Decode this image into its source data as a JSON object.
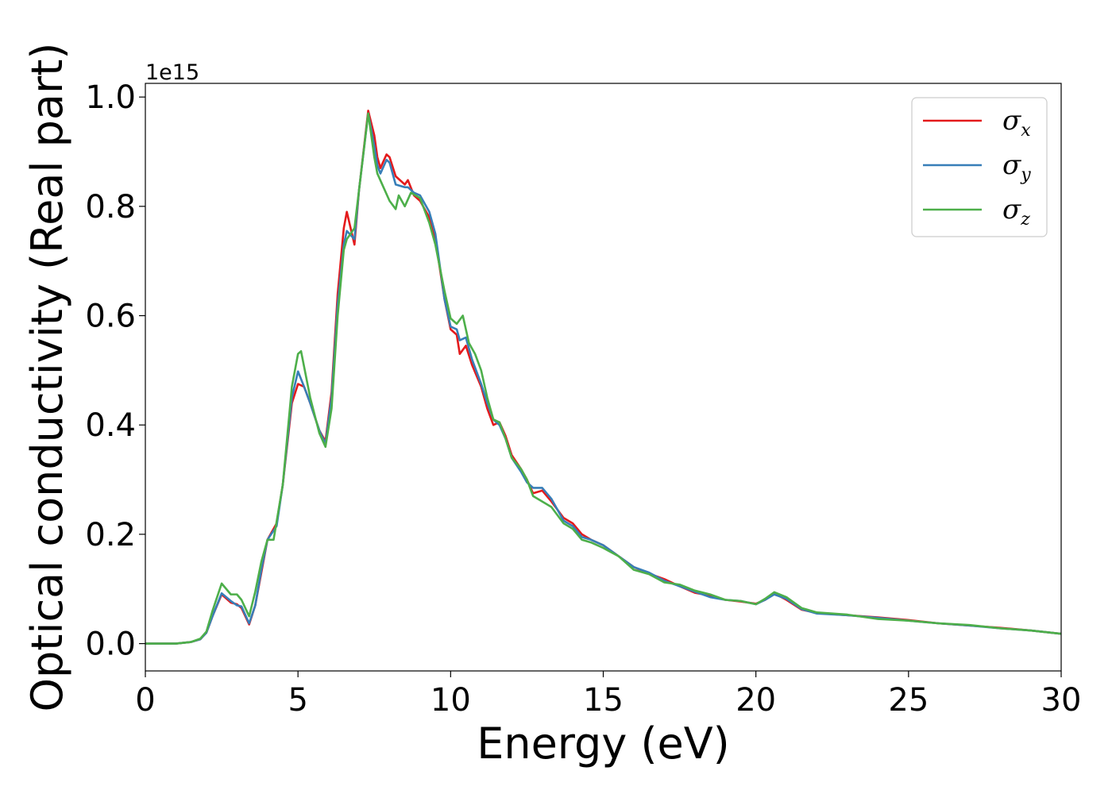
{
  "chart_data": {
    "type": "line",
    "title": "",
    "xlabel": "Energy (eV)",
    "ylabel": "Optical conductivity (Real part)",
    "y_offset_label": "1e15",
    "y_scale": 1000000000000000.0,
    "xlim": [
      0,
      30
    ],
    "ylim": [
      -0.05,
      1.025
    ],
    "grid": false,
    "legend_position": "top-right",
    "x_ticks": [
      0,
      5,
      10,
      15,
      20,
      25,
      30
    ],
    "x_tick_labels": [
      "0",
      "5",
      "10",
      "15",
      "20",
      "25",
      "30"
    ],
    "y_ticks": [
      0.0,
      0.2,
      0.4,
      0.6,
      0.8,
      1.0
    ],
    "y_tick_labels": [
      "0.0",
      "0.2",
      "0.4",
      "0.6",
      "0.8",
      "1.0"
    ],
    "series": [
      {
        "name": "σx",
        "symbol": "σ",
        "subscript": "x",
        "color": "#e41a1c",
        "points": [
          [
            0,
            0.0
          ],
          [
            1.0,
            0.0
          ],
          [
            1.5,
            0.003
          ],
          [
            1.8,
            0.008
          ],
          [
            2.0,
            0.02
          ],
          [
            2.2,
            0.05
          ],
          [
            2.5,
            0.09
          ],
          [
            2.8,
            0.075
          ],
          [
            3.0,
            0.072
          ],
          [
            3.15,
            0.065
          ],
          [
            3.4,
            0.035
          ],
          [
            3.6,
            0.07
          ],
          [
            3.8,
            0.13
          ],
          [
            4.0,
            0.19
          ],
          [
            4.3,
            0.22
          ],
          [
            4.5,
            0.29
          ],
          [
            4.8,
            0.44
          ],
          [
            5.0,
            0.475
          ],
          [
            5.2,
            0.47
          ],
          [
            5.4,
            0.44
          ],
          [
            5.7,
            0.39
          ],
          [
            5.9,
            0.37
          ],
          [
            6.1,
            0.46
          ],
          [
            6.3,
            0.64
          ],
          [
            6.5,
            0.76
          ],
          [
            6.6,
            0.79
          ],
          [
            6.85,
            0.73
          ],
          [
            7.0,
            0.83
          ],
          [
            7.3,
            0.975
          ],
          [
            7.5,
            0.93
          ],
          [
            7.6,
            0.89
          ],
          [
            7.7,
            0.87
          ],
          [
            7.9,
            0.895
          ],
          [
            8.0,
            0.89
          ],
          [
            8.2,
            0.855
          ],
          [
            8.5,
            0.84
          ],
          [
            8.6,
            0.848
          ],
          [
            8.8,
            0.82
          ],
          [
            9.0,
            0.81
          ],
          [
            9.3,
            0.78
          ],
          [
            9.5,
            0.74
          ],
          [
            9.8,
            0.63
          ],
          [
            10.0,
            0.575
          ],
          [
            10.2,
            0.565
          ],
          [
            10.3,
            0.53
          ],
          [
            10.5,
            0.545
          ],
          [
            10.7,
            0.51
          ],
          [
            11.0,
            0.47
          ],
          [
            11.2,
            0.43
          ],
          [
            11.4,
            0.4
          ],
          [
            11.6,
            0.405
          ],
          [
            11.8,
            0.38
          ],
          [
            12.0,
            0.345
          ],
          [
            12.3,
            0.32
          ],
          [
            12.5,
            0.3
          ],
          [
            12.7,
            0.275
          ],
          [
            13.0,
            0.28
          ],
          [
            13.3,
            0.26
          ],
          [
            13.7,
            0.23
          ],
          [
            14.0,
            0.22
          ],
          [
            14.3,
            0.2
          ],
          [
            14.6,
            0.19
          ],
          [
            15.0,
            0.18
          ],
          [
            15.5,
            0.16
          ],
          [
            16.0,
            0.14
          ],
          [
            16.5,
            0.128
          ],
          [
            17.0,
            0.118
          ],
          [
            17.5,
            0.105
          ],
          [
            18.0,
            0.093
          ],
          [
            18.5,
            0.088
          ],
          [
            19.0,
            0.08
          ],
          [
            19.5,
            0.077
          ],
          [
            20.0,
            0.073
          ],
          [
            20.3,
            0.08
          ],
          [
            20.6,
            0.092
          ],
          [
            21.0,
            0.08
          ],
          [
            21.5,
            0.062
          ],
          [
            22.0,
            0.056
          ],
          [
            23.0,
            0.052
          ],
          [
            24.0,
            0.048
          ],
          [
            25.0,
            0.043
          ],
          [
            26.0,
            0.037
          ],
          [
            27.0,
            0.033
          ],
          [
            28.0,
            0.029
          ],
          [
            29.0,
            0.024
          ],
          [
            30.0,
            0.018
          ]
        ]
      },
      {
        "name": "σy",
        "symbol": "σ",
        "subscript": "y",
        "color": "#377eb8",
        "points": [
          [
            0,
            0.0
          ],
          [
            1.0,
            0.0
          ],
          [
            1.5,
            0.003
          ],
          [
            1.8,
            0.008
          ],
          [
            2.0,
            0.02
          ],
          [
            2.2,
            0.05
          ],
          [
            2.5,
            0.092
          ],
          [
            2.8,
            0.078
          ],
          [
            3.0,
            0.07
          ],
          [
            3.15,
            0.068
          ],
          [
            3.4,
            0.037
          ],
          [
            3.6,
            0.07
          ],
          [
            3.8,
            0.135
          ],
          [
            4.0,
            0.19
          ],
          [
            4.3,
            0.215
          ],
          [
            4.5,
            0.29
          ],
          [
            4.8,
            0.45
          ],
          [
            5.0,
            0.498
          ],
          [
            5.2,
            0.47
          ],
          [
            5.4,
            0.44
          ],
          [
            5.7,
            0.39
          ],
          [
            5.9,
            0.365
          ],
          [
            6.1,
            0.45
          ],
          [
            6.3,
            0.62
          ],
          [
            6.5,
            0.73
          ],
          [
            6.6,
            0.755
          ],
          [
            6.85,
            0.74
          ],
          [
            7.0,
            0.83
          ],
          [
            7.3,
            0.97
          ],
          [
            7.5,
            0.91
          ],
          [
            7.6,
            0.875
          ],
          [
            7.7,
            0.86
          ],
          [
            7.9,
            0.885
          ],
          [
            8.0,
            0.88
          ],
          [
            8.2,
            0.84
          ],
          [
            8.5,
            0.835
          ],
          [
            8.6,
            0.835
          ],
          [
            8.8,
            0.825
          ],
          [
            9.0,
            0.82
          ],
          [
            9.3,
            0.79
          ],
          [
            9.5,
            0.75
          ],
          [
            9.8,
            0.63
          ],
          [
            10.0,
            0.58
          ],
          [
            10.2,
            0.575
          ],
          [
            10.3,
            0.555
          ],
          [
            10.5,
            0.56
          ],
          [
            10.7,
            0.52
          ],
          [
            11.0,
            0.475
          ],
          [
            11.2,
            0.44
          ],
          [
            11.4,
            0.41
          ],
          [
            11.6,
            0.4
          ],
          [
            11.8,
            0.375
          ],
          [
            12.0,
            0.34
          ],
          [
            12.3,
            0.315
          ],
          [
            12.5,
            0.295
          ],
          [
            12.7,
            0.285
          ],
          [
            13.0,
            0.285
          ],
          [
            13.3,
            0.265
          ],
          [
            13.7,
            0.225
          ],
          [
            14.0,
            0.215
          ],
          [
            14.3,
            0.195
          ],
          [
            14.6,
            0.19
          ],
          [
            15.0,
            0.18
          ],
          [
            15.5,
            0.16
          ],
          [
            16.0,
            0.14
          ],
          [
            16.5,
            0.13
          ],
          [
            17.0,
            0.115
          ],
          [
            17.5,
            0.105
          ],
          [
            18.0,
            0.095
          ],
          [
            18.5,
            0.085
          ],
          [
            19.0,
            0.08
          ],
          [
            19.5,
            0.078
          ],
          [
            20.0,
            0.072
          ],
          [
            20.3,
            0.08
          ],
          [
            20.6,
            0.09
          ],
          [
            21.0,
            0.082
          ],
          [
            21.5,
            0.063
          ],
          [
            22.0,
            0.055
          ],
          [
            23.0,
            0.052
          ],
          [
            24.0,
            0.047
          ],
          [
            25.0,
            0.042
          ],
          [
            26.0,
            0.037
          ],
          [
            27.0,
            0.033
          ],
          [
            28.0,
            0.028
          ],
          [
            29.0,
            0.024
          ],
          [
            30.0,
            0.018
          ]
        ]
      },
      {
        "name": "σz",
        "symbol": "σ",
        "subscript": "z",
        "color": "#4daf4a",
        "points": [
          [
            0,
            0.0
          ],
          [
            1.0,
            0.0
          ],
          [
            1.5,
            0.003
          ],
          [
            1.8,
            0.009
          ],
          [
            2.0,
            0.022
          ],
          [
            2.2,
            0.06
          ],
          [
            2.5,
            0.11
          ],
          [
            2.8,
            0.09
          ],
          [
            3.0,
            0.09
          ],
          [
            3.15,
            0.08
          ],
          [
            3.4,
            0.05
          ],
          [
            3.6,
            0.095
          ],
          [
            3.8,
            0.15
          ],
          [
            4.0,
            0.19
          ],
          [
            4.2,
            0.19
          ],
          [
            4.5,
            0.29
          ],
          [
            4.8,
            0.47
          ],
          [
            5.0,
            0.53
          ],
          [
            5.1,
            0.535
          ],
          [
            5.4,
            0.45
          ],
          [
            5.7,
            0.385
          ],
          [
            5.9,
            0.36
          ],
          [
            6.1,
            0.43
          ],
          [
            6.3,
            0.6
          ],
          [
            6.5,
            0.72
          ],
          [
            6.6,
            0.74
          ],
          [
            6.85,
            0.76
          ],
          [
            7.0,
            0.83
          ],
          [
            7.3,
            0.97
          ],
          [
            7.5,
            0.89
          ],
          [
            7.6,
            0.86
          ],
          [
            7.8,
            0.835
          ],
          [
            8.0,
            0.81
          ],
          [
            8.2,
            0.795
          ],
          [
            8.3,
            0.82
          ],
          [
            8.5,
            0.8
          ],
          [
            8.7,
            0.825
          ],
          [
            9.0,
            0.815
          ],
          [
            9.3,
            0.77
          ],
          [
            9.5,
            0.73
          ],
          [
            9.8,
            0.645
          ],
          [
            10.0,
            0.595
          ],
          [
            10.2,
            0.585
          ],
          [
            10.4,
            0.6
          ],
          [
            10.6,
            0.55
          ],
          [
            10.8,
            0.53
          ],
          [
            11.0,
            0.5
          ],
          [
            11.2,
            0.45
          ],
          [
            11.4,
            0.41
          ],
          [
            11.6,
            0.405
          ],
          [
            11.8,
            0.375
          ],
          [
            12.0,
            0.34
          ],
          [
            12.3,
            0.32
          ],
          [
            12.5,
            0.3
          ],
          [
            12.7,
            0.27
          ],
          [
            13.0,
            0.26
          ],
          [
            13.3,
            0.25
          ],
          [
            13.7,
            0.22
          ],
          [
            14.0,
            0.21
          ],
          [
            14.3,
            0.19
          ],
          [
            14.6,
            0.185
          ],
          [
            15.0,
            0.175
          ],
          [
            15.5,
            0.16
          ],
          [
            16.0,
            0.135
          ],
          [
            16.5,
            0.127
          ],
          [
            17.0,
            0.112
          ],
          [
            17.5,
            0.108
          ],
          [
            18.0,
            0.097
          ],
          [
            18.5,
            0.09
          ],
          [
            19.0,
            0.08
          ],
          [
            19.5,
            0.078
          ],
          [
            20.0,
            0.072
          ],
          [
            20.3,
            0.082
          ],
          [
            20.6,
            0.094
          ],
          [
            21.0,
            0.085
          ],
          [
            21.5,
            0.065
          ],
          [
            22.0,
            0.057
          ],
          [
            23.0,
            0.053
          ],
          [
            24.0,
            0.045
          ],
          [
            25.0,
            0.042
          ],
          [
            26.0,
            0.037
          ],
          [
            27.0,
            0.034
          ],
          [
            28.0,
            0.028
          ],
          [
            29.0,
            0.024
          ],
          [
            30.0,
            0.018
          ]
        ]
      }
    ]
  }
}
